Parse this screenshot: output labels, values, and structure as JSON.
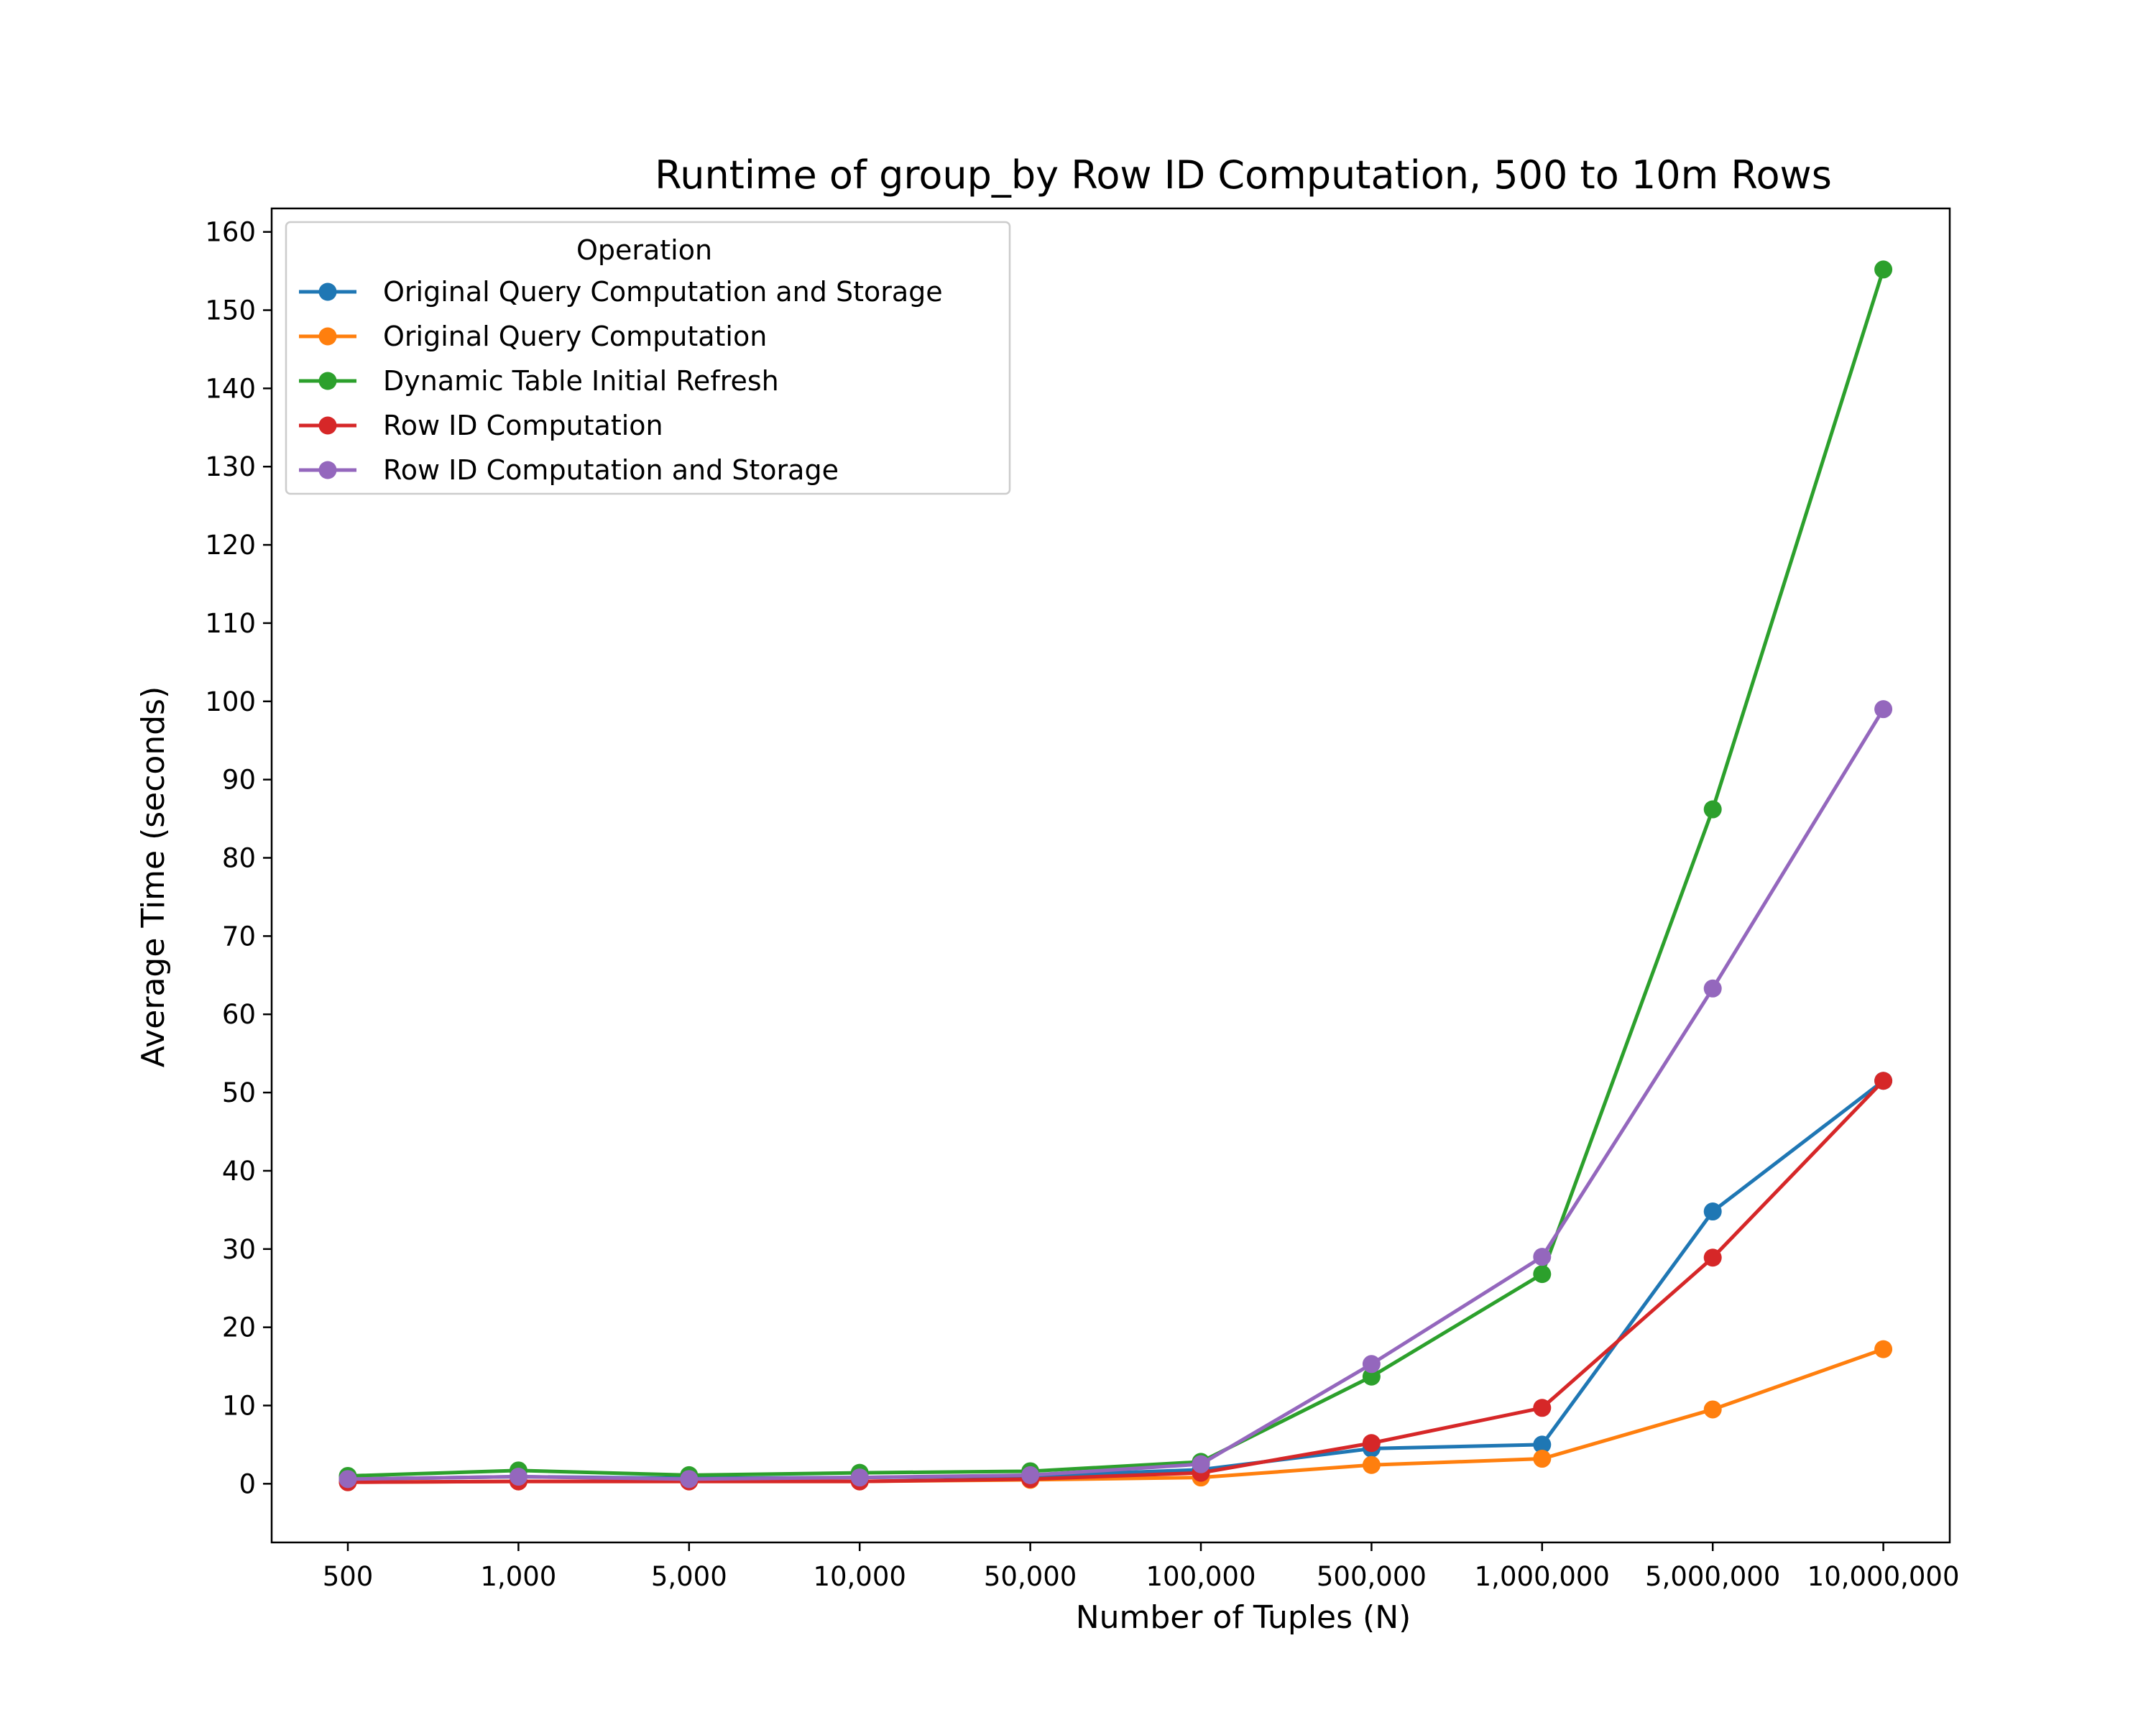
{
  "chart_data": {
    "type": "line",
    "title": "Runtime of group_by Row ID Computation, 500 to 10m Rows",
    "xlabel": "Number of Tuples (N)",
    "ylabel": "Average Time (seconds)",
    "categories": [
      "500",
      "1,000",
      "5,000",
      "10,000",
      "50,000",
      "100,000",
      "500,000",
      "1,000,000",
      "5,000,000",
      "10,000,000"
    ],
    "ylim": [
      -7.5,
      163
    ],
    "yticks": [
      0,
      10,
      20,
      30,
      40,
      50,
      60,
      70,
      80,
      90,
      100,
      110,
      120,
      130,
      140,
      150,
      160
    ],
    "grid": false,
    "legend": {
      "title": "Operation",
      "placement": "top-left"
    },
    "series": [
      {
        "name": "Original Query Computation and Storage",
        "color": "#1f77b4",
        "values": [
          0.6,
          0.9,
          0.7,
          0.8,
          1.0,
          1.8,
          4.5,
          5.0,
          34.8,
          51.5
        ]
      },
      {
        "name": "Original Query Computation",
        "color": "#ff7f0e",
        "values": [
          0.2,
          0.3,
          0.3,
          0.3,
          0.5,
          0.8,
          2.4,
          3.2,
          9.5,
          17.2
        ]
      },
      {
        "name": "Dynamic Table Initial Refresh",
        "color": "#2ca02c",
        "values": [
          1.0,
          1.7,
          1.1,
          1.4,
          1.6,
          2.8,
          13.7,
          26.8,
          86.2,
          155.2
        ]
      },
      {
        "name": "Row ID Computation",
        "color": "#d62728",
        "values": [
          0.2,
          0.3,
          0.3,
          0.3,
          0.6,
          1.4,
          5.2,
          9.7,
          28.9,
          51.5
        ]
      },
      {
        "name": "Row ID Computation and Storage",
        "color": "#9467bd",
        "values": [
          0.6,
          0.9,
          0.6,
          0.8,
          1.1,
          2.5,
          15.3,
          29.0,
          63.3,
          99.0
        ]
      }
    ]
  }
}
